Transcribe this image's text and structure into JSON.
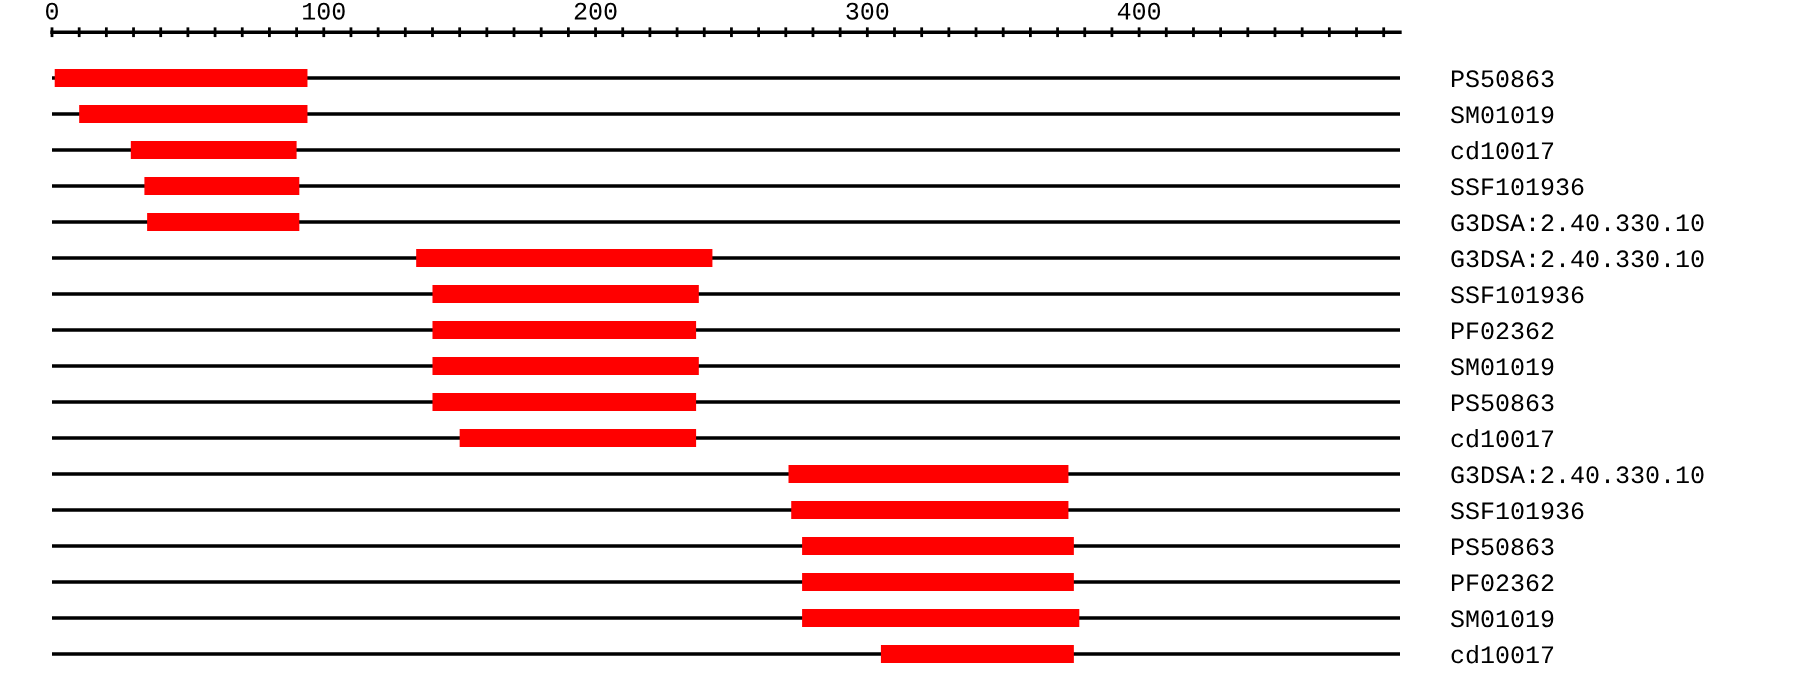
{
  "chart_data": {
    "type": "bar",
    "orientation": "horizontal",
    "categories": [
      "PS50863",
      "SM01019",
      "cd10017",
      "SSF101936",
      "G3DSA:2.40.330.10",
      "G3DSA:2.40.330.10",
      "SSF101936",
      "PF02362",
      "SM01019",
      "PS50863",
      "cd10017",
      "G3DSA:2.40.330.10",
      "SSF101936",
      "PS50863",
      "PF02362",
      "SM01019",
      "cd10017"
    ],
    "base": [
      1,
      10,
      29,
      34,
      35,
      134,
      140,
      140,
      140,
      140,
      150,
      271,
      272,
      276,
      276,
      276,
      305
    ],
    "values": [
      93,
      84,
      61,
      57,
      56,
      109,
      98,
      97,
      98,
      97,
      87,
      103,
      102,
      100,
      100,
      102,
      71
    ],
    "color": "#ff0000",
    "xlim": [
      0,
      496
    ],
    "xticks": [
      0,
      {
        "value": 10,
        "label": null
      },
      {
        "value": 20,
        "label": null
      },
      {
        "value": 30,
        "label": null
      },
      {
        "value": 40,
        "label": null
      },
      {
        "value": 50,
        "label": null
      },
      {
        "value": 60,
        "label": null
      },
      {
        "value": 70,
        "label": null
      },
      {
        "value": 80,
        "label": null
      },
      {
        "value": 90,
        "label": null
      },
      100,
      {
        "value": 110,
        "label": null
      },
      {
        "value": 120,
        "label": null
      },
      {
        "value": 130,
        "label": null
      },
      {
        "value": 140,
        "label": null
      },
      {
        "value": 150,
        "label": null
      },
      {
        "value": 160,
        "label": null
      },
      {
        "value": 170,
        "label": null
      },
      {
        "value": 180,
        "label": null
      },
      {
        "value": 190,
        "label": null
      },
      200,
      {
        "value": 210,
        "label": null
      },
      {
        "value": 220,
        "label": null
      },
      {
        "value": 230,
        "label": null
      },
      {
        "value": 240,
        "label": null
      },
      {
        "value": 250,
        "label": null
      },
      {
        "value": 260,
        "label": null
      },
      {
        "value": 270,
        "label": null
      },
      {
        "value": 280,
        "label": null
      },
      {
        "value": 290,
        "label": null
      },
      300,
      {
        "value": 310,
        "label": null
      },
      {
        "value": 320,
        "label": null
      },
      {
        "value": 330,
        "label": null
      },
      {
        "value": 340,
        "label": null
      },
      {
        "value": 350,
        "label": null
      },
      {
        "value": 360,
        "label": null
      },
      {
        "value": 370,
        "label": null
      },
      {
        "value": 380,
        "label": null
      },
      {
        "value": 390,
        "label": null
      },
      400,
      {
        "value": 410,
        "label": null
      },
      {
        "value": 420,
        "label": null
      },
      {
        "value": 430,
        "label": null
      },
      {
        "value": 440,
        "label": null
      },
      {
        "value": 450,
        "label": null
      },
      {
        "value": 460,
        "label": null
      },
      {
        "value": 470,
        "label": null
      },
      {
        "value": 480,
        "label": null
      },
      {
        "value": 490,
        "label": null
      }
    ],
    "grid": "y"
  }
}
